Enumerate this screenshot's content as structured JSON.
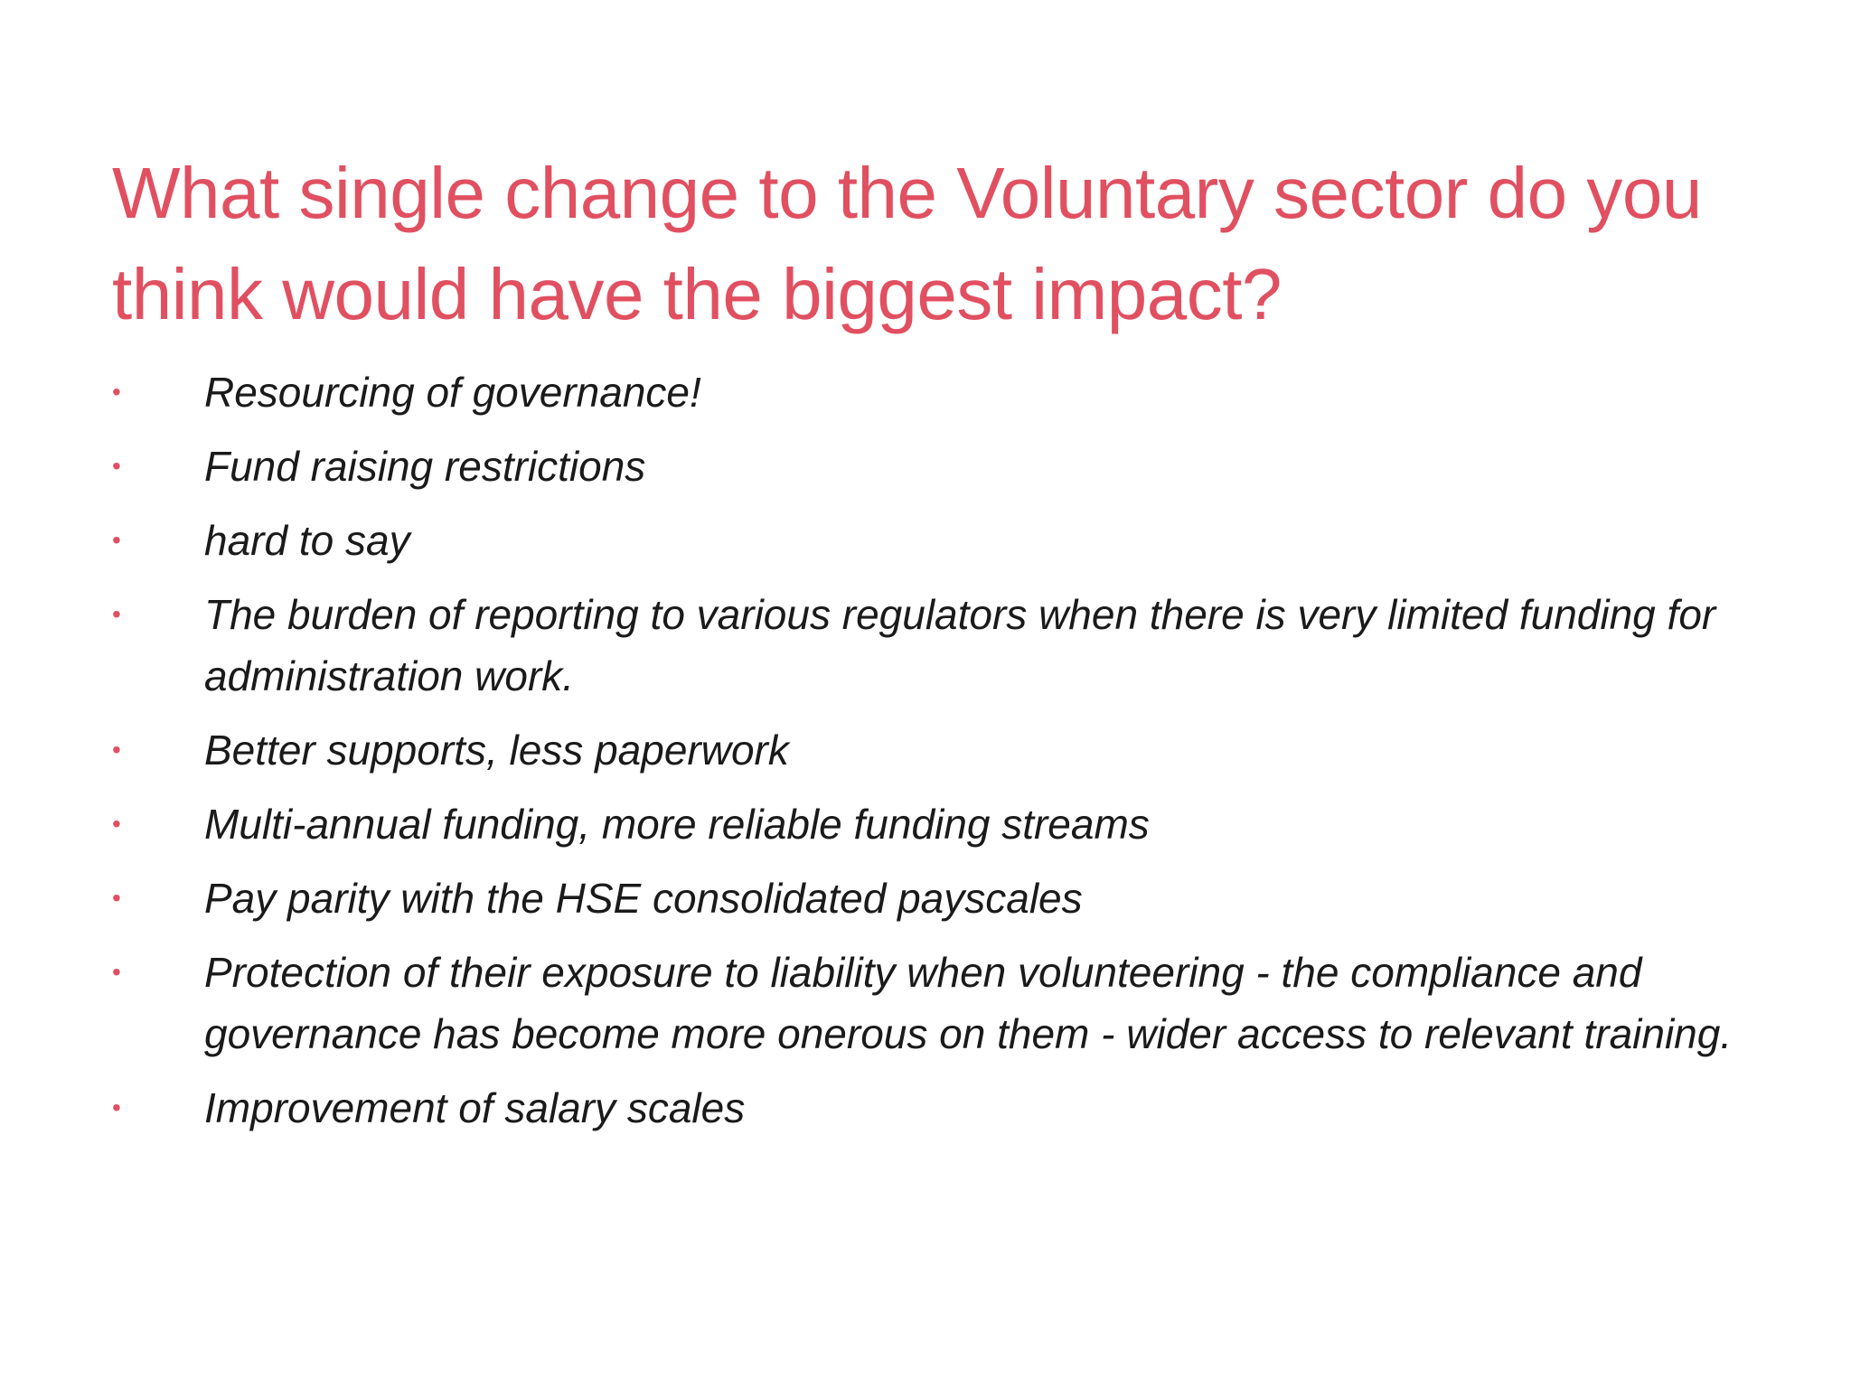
{
  "slide": {
    "title": "What single change to the Voluntary sector do you think would have the biggest impact?",
    "bullet_marker": "•",
    "accent_color": "#e05061",
    "bullets": [
      "Resourcing of governance!",
      "Fund raising restrictions",
      "hard to say",
      "The burden of reporting to various regulators when there is very limited funding for administration work.",
      "Better supports, less paperwork",
      "Multi-annual funding, more reliable funding streams",
      "Pay parity with the HSE consolidated payscales",
      "Protection of their exposure to liability when volunteering - the compliance and governance has become more onerous on them - wider access to relevant training.",
      "Improvement of salary scales"
    ]
  }
}
